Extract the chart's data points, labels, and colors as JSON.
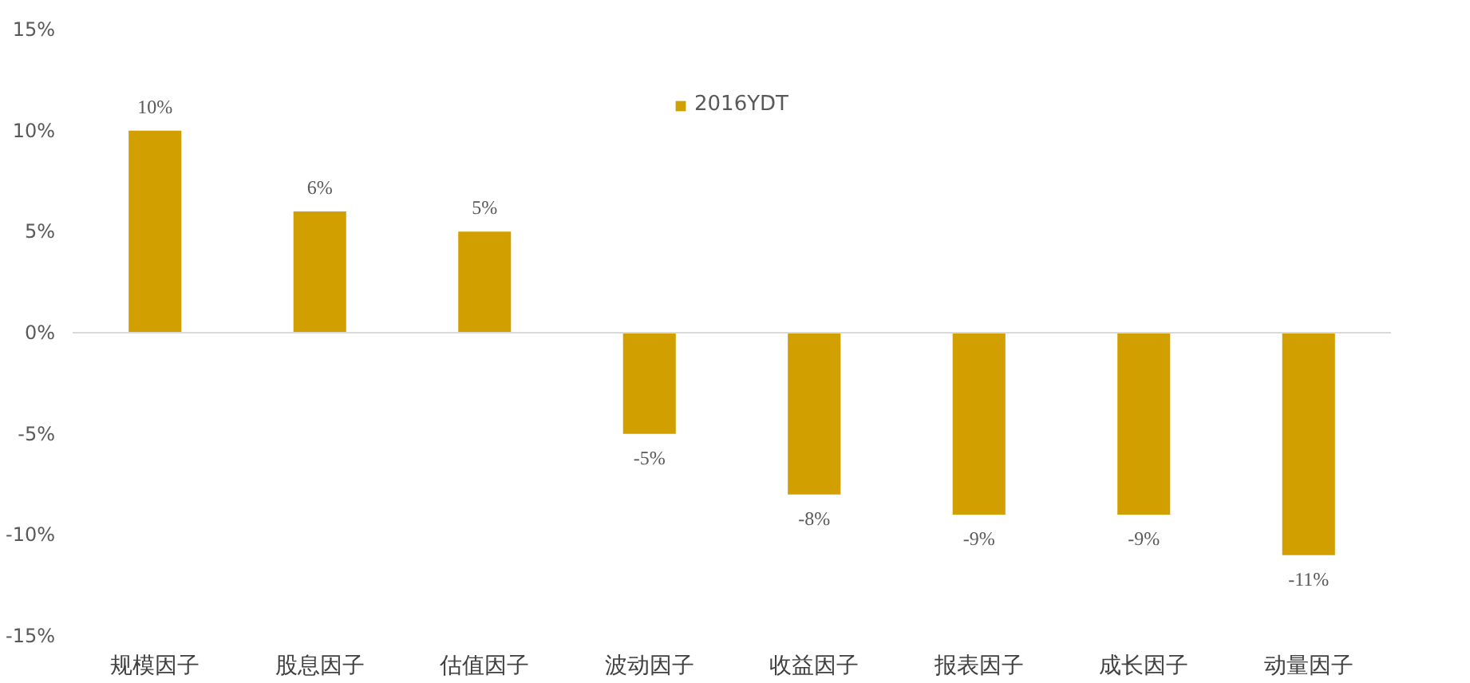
{
  "chart_data": {
    "type": "bar",
    "categories": [
      "规模因子",
      "股息因子",
      "估值因子",
      "波动因子",
      "收益因子",
      "报表因子",
      "成长因子",
      "动量因子"
    ],
    "series": [
      {
        "name": "2016YDT",
        "color": "#d1a000",
        "values": [
          10,
          6,
          5,
          -5,
          -8,
          -9,
          -9,
          -11
        ],
        "value_labels": [
          "10%",
          "6%",
          "5%",
          "-5%",
          "-8%",
          "-9%",
          "-9%",
          "-11%"
        ]
      }
    ],
    "ylim": [
      -15,
      15
    ],
    "yticks": [
      {
        "value": -15,
        "label": "-15%"
      },
      {
        "value": -10,
        "label": "-10%"
      },
      {
        "value": -5,
        "label": "-5%"
      },
      {
        "value": 0,
        "label": "0%"
      },
      {
        "value": 5,
        "label": "5%"
      },
      {
        "value": 10,
        "label": "10%"
      },
      {
        "value": 15,
        "label": "15%"
      }
    ],
    "ref_lines": [
      {
        "axis": "y",
        "value": 0,
        "color": "#d9d9d9"
      }
    ],
    "grid": false,
    "legend": "top"
  }
}
